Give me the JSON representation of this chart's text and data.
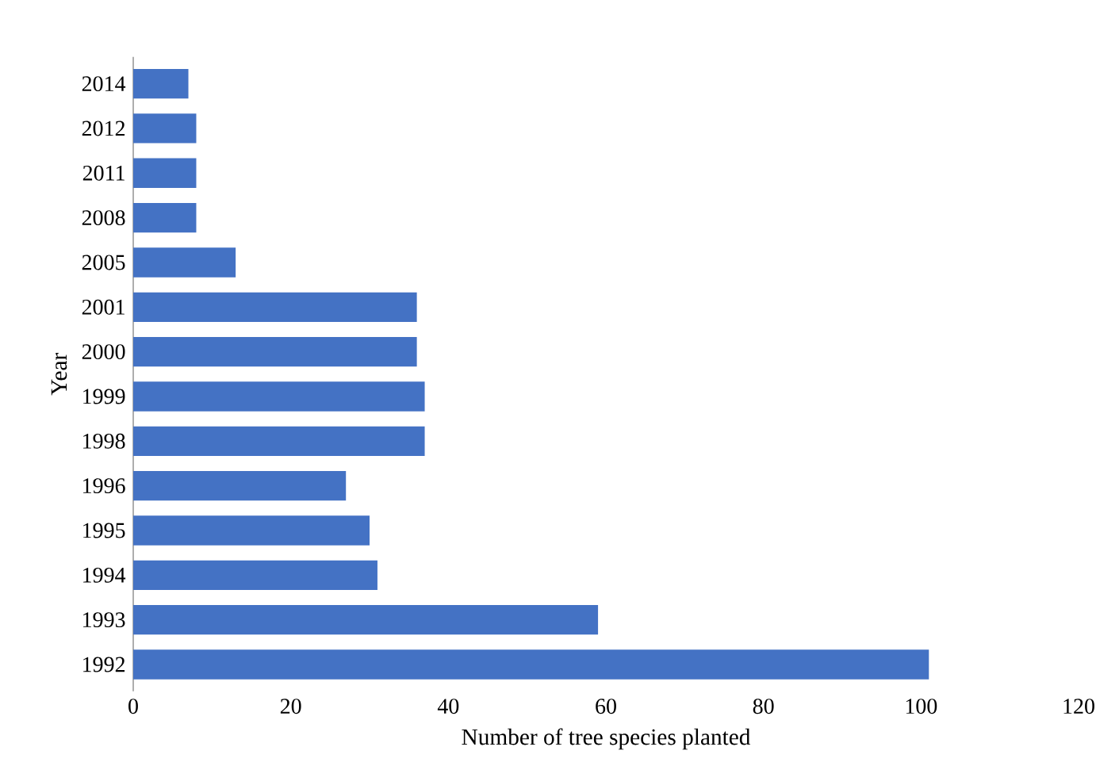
{
  "chart_data": {
    "type": "bar",
    "orientation": "horizontal",
    "xlabel": "Number of tree species planted",
    "ylabel": "Year",
    "categories": [
      "2014",
      "2012",
      "2011",
      "2008",
      "2005",
      "2001",
      "2000",
      "1999",
      "1998",
      "1996",
      "1995",
      "1994",
      "1993",
      "1992"
    ],
    "values": [
      7,
      8,
      8,
      8,
      13,
      36,
      36,
      37,
      37,
      27,
      30,
      31,
      59,
      101
    ],
    "color": "#4472c4",
    "xlim": [
      0,
      120
    ],
    "xticks": [
      0,
      20,
      40,
      60,
      80,
      100,
      120
    ],
    "grid": false
  }
}
